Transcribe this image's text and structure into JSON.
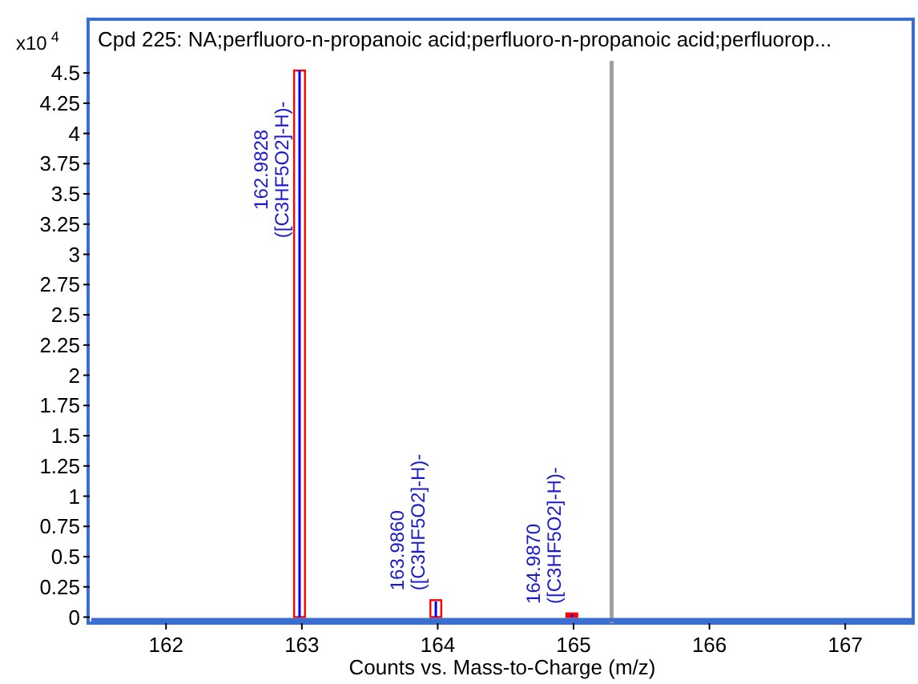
{
  "chart_data": {
    "type": "bar",
    "title": "Cpd 225: NA;perfluoro-n-propanoic acid;perfluoro-n-propanoic acid;perfluorop...",
    "xlabel": "Counts vs. Mass-to-Charge (m/z)",
    "ylabel": "x10$^{4}$",
    "series": [
      {
        "color": "#ff0000",
        "x": [
          162.9828,
          163.986,
          164.987
        ],
        "values": [
          4.52,
          0.14,
          0.03
        ]
      },
      {
        "color": "#0000ff",
        "x": [
          162.9828,
          163.986,
          164.987
        ],
        "values": [
          4.52,
          0.13,
          0.02
        ]
      }
    ],
    "xlim": [
      161.45,
      167.5
    ],
    "xticks": [
      162,
      163,
      164,
      165,
      166,
      167
    ],
    "ylim": [
      -0.05,
      4.6
    ],
    "yticks": [
      0,
      0.25,
      0.5,
      0.75,
      1,
      1.25,
      1.5,
      1.75,
      2,
      2.25,
      2.5,
      2.75,
      3,
      3.25,
      3.5,
      3.75,
      4,
      4.25,
      4.5
    ],
    "ref_lines": [
      {
        "axis": "x",
        "value": 165.28,
        "color": "#a0a0a0"
      }
    ],
    "annotations": [
      {
        "text": "162.9828\n([C3HF5O2]-H)-",
        "x": 162.9828,
        "y": 3.7
      },
      {
        "text": "163.9860\n([C3HF5O2]-H)-",
        "x": 163.986,
        "y": 0.14
      },
      {
        "text": "164.9870\n([C3HF5O2]-H)-",
        "x": 164.987,
        "y": 0.03
      }
    ],
    "grid": false
  }
}
